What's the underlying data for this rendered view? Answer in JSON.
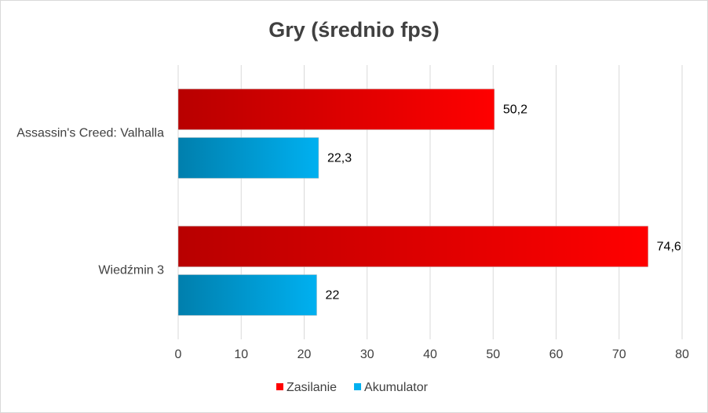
{
  "chart_data": {
    "type": "hbar",
    "title": "Gry (średnio fps)",
    "categories": [
      "Assassin's Creed: Valhalla",
      "Wiedźmin 3"
    ],
    "series": [
      {
        "name": "Zasilanie",
        "color": "#ff0000",
        "values": [
          50.2,
          74.6
        ],
        "value_labels": [
          "50,2",
          "74,6"
        ]
      },
      {
        "name": "Akumulator",
        "color": "#00b0f0",
        "values": [
          22.3,
          22
        ],
        "value_labels": [
          "22,3",
          "22"
        ]
      }
    ],
    "xlim": [
      0,
      80
    ],
    "xticks": [
      0,
      10,
      20,
      30,
      40,
      50,
      60,
      70,
      80
    ],
    "grid": true,
    "legend": "bottom"
  }
}
